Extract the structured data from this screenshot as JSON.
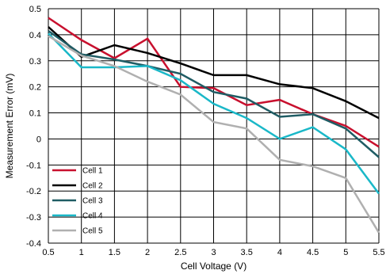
{
  "chart_data": {
    "type": "line",
    "xlabel": "Cell Voltage (V)",
    "ylabel": "Measurement Error (mV)",
    "x": [
      0.5,
      1,
      1.5,
      2,
      2.5,
      3,
      3.5,
      4,
      4.5,
      5,
      5.5
    ],
    "xlim": [
      0.5,
      5.5
    ],
    "ylim": [
      -0.4,
      0.5
    ],
    "xticks": [
      "0.5",
      "1",
      "1.5",
      "2",
      "2.5",
      "3",
      "3.5",
      "4",
      "4.5",
      "5",
      "5.5"
    ],
    "yticks": [
      "0.5",
      "0.4",
      "0.3",
      "0.2",
      "0.1",
      "0",
      "-0.1",
      "-0.2",
      "-0.3",
      "-0.4"
    ],
    "grid": true,
    "legend_position": "bottom-left",
    "series": [
      {
        "name": "Cell 1",
        "color": "#c8102e",
        "values": [
          0.465,
          0.38,
          0.31,
          0.385,
          0.2,
          0.195,
          0.13,
          0.15,
          0.095,
          0.05,
          -0.03
        ]
      },
      {
        "name": "Cell 2",
        "color": "#000000",
        "values": [
          0.43,
          0.315,
          0.36,
          0.33,
          0.29,
          0.245,
          0.245,
          0.21,
          0.195,
          0.145,
          0.08
        ]
      },
      {
        "name": "Cell 3",
        "color": "#1f5c64",
        "values": [
          0.415,
          0.325,
          0.305,
          0.28,
          0.25,
          0.18,
          0.155,
          0.085,
          0.095,
          0.04,
          -0.07
        ]
      },
      {
        "name": "Cell 4",
        "color": "#1ab8c8",
        "values": [
          0.405,
          0.275,
          0.275,
          0.28,
          0.225,
          0.135,
          0.08,
          0.0,
          0.045,
          -0.04,
          -0.21
        ]
      },
      {
        "name": "Cell 5",
        "color": "#b0b0b0",
        "values": [
          0.395,
          0.32,
          0.28,
          0.22,
          0.17,
          0.065,
          0.04,
          -0.08,
          -0.105,
          -0.15,
          -0.36
        ]
      }
    ]
  }
}
